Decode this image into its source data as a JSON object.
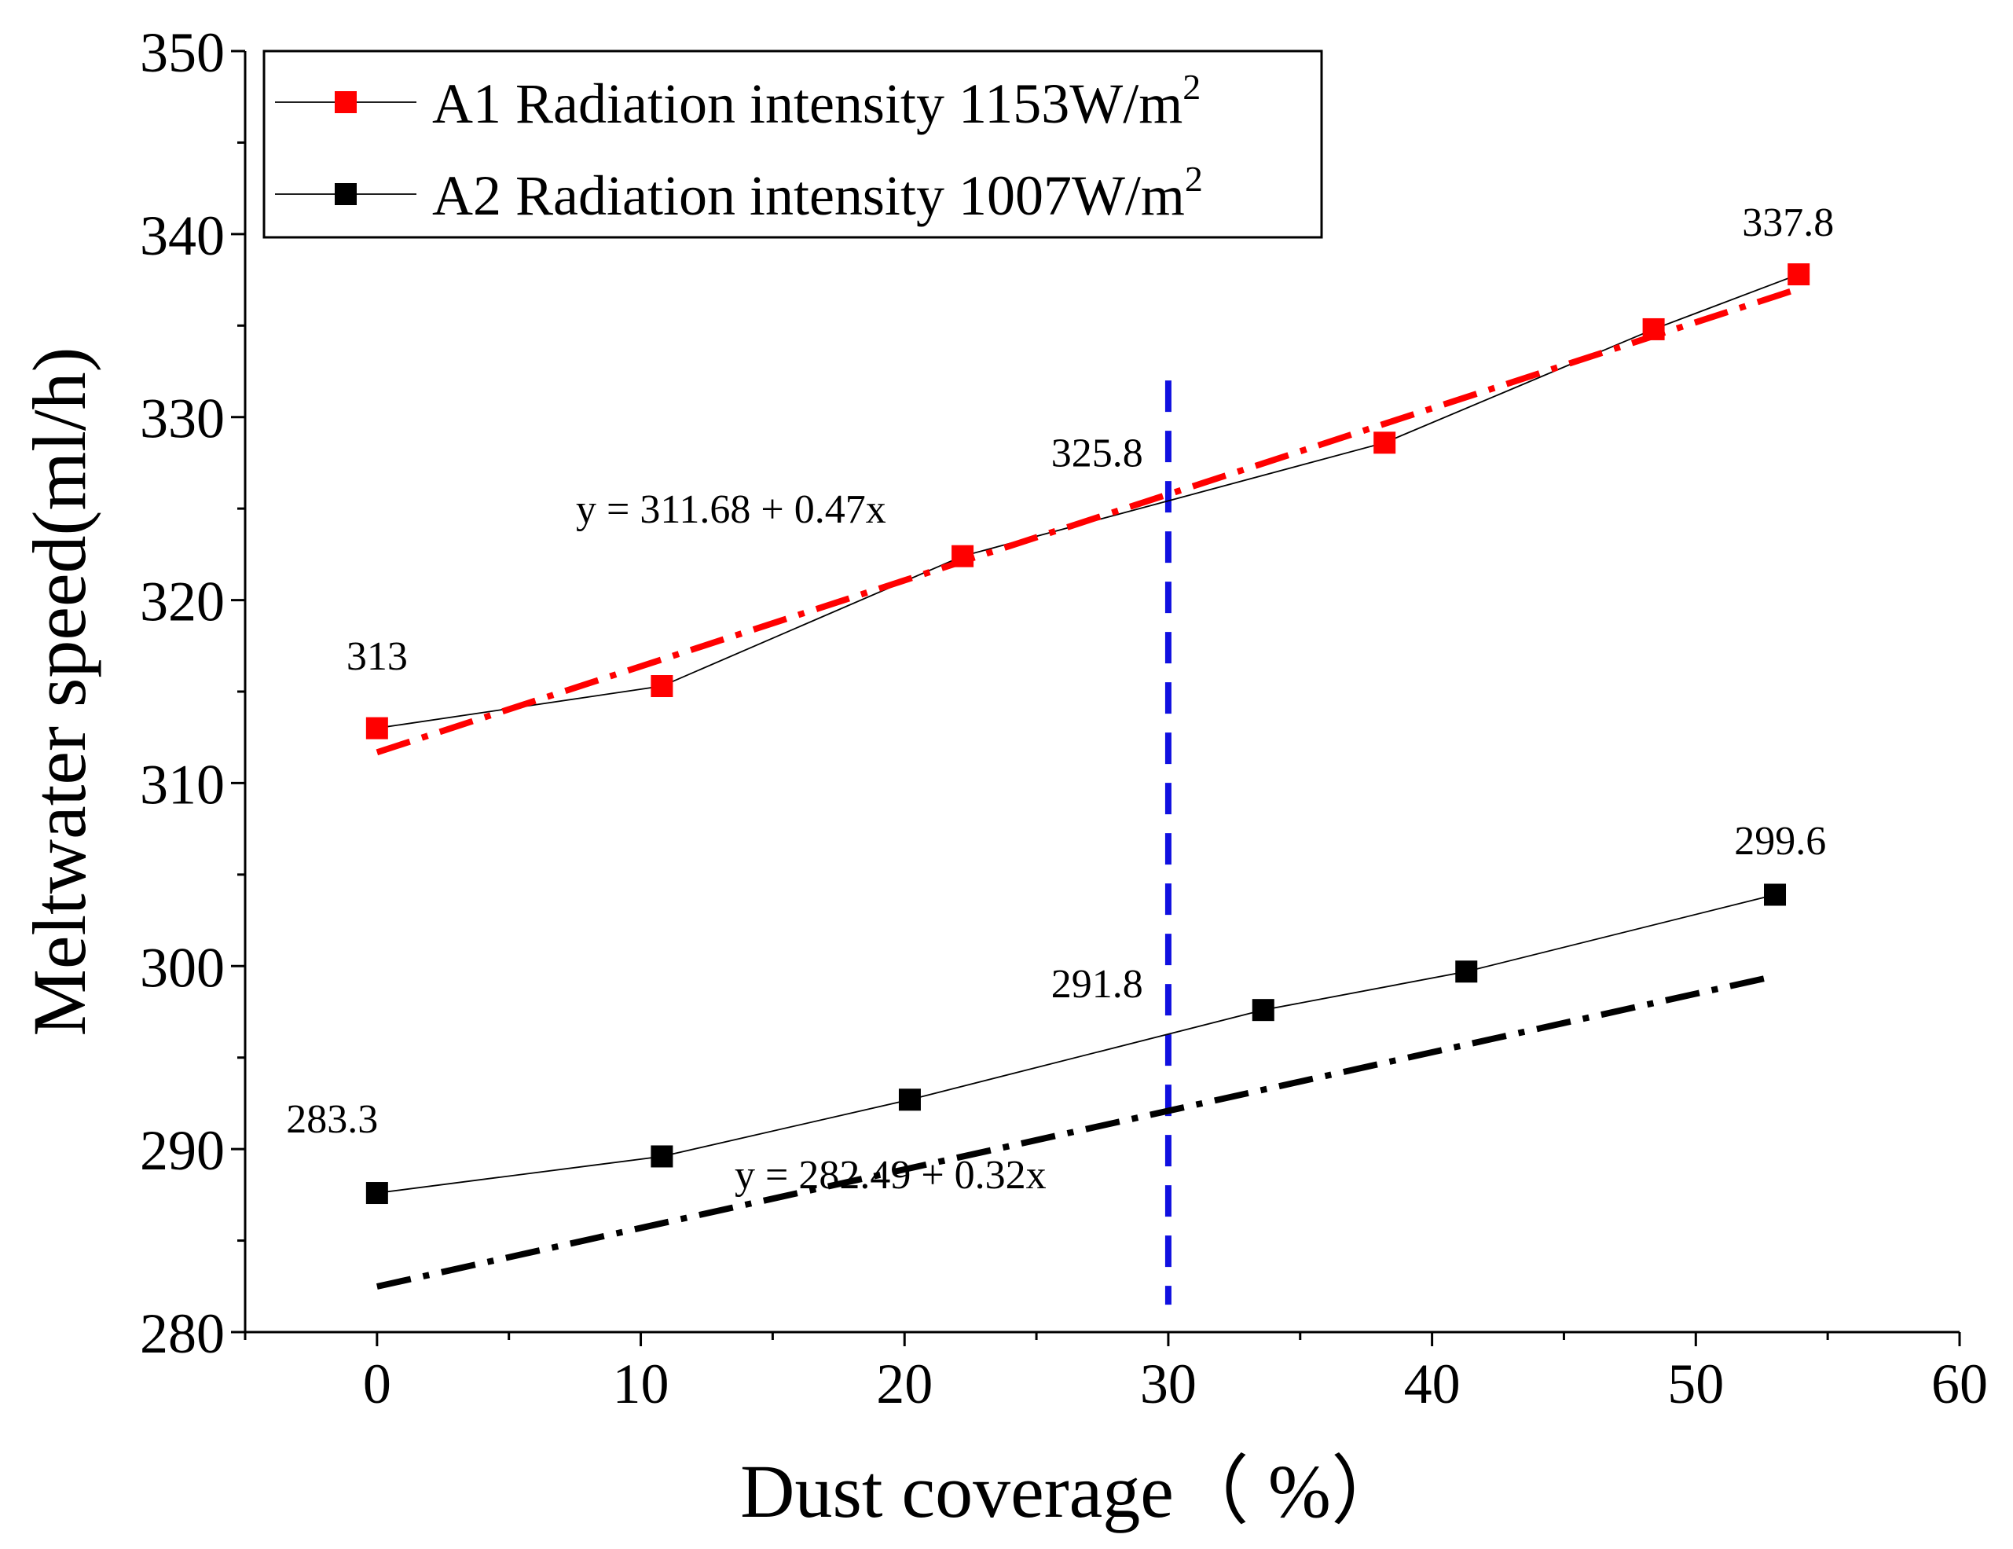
{
  "chart_data": {
    "type": "line",
    "title": "",
    "xlabel": "Dust coverage（ %）",
    "ylabel": "Meltwater speed(ml/h)",
    "xlim": [
      -5,
      60
    ],
    "ylim": [
      280,
      350
    ],
    "x_ticks": [
      0,
      10,
      20,
      30,
      40,
      50,
      60
    ],
    "y_ticks": [
      280,
      290,
      300,
      310,
      320,
      330,
      340,
      350
    ],
    "grid": false,
    "legend_position": "top-left",
    "series": [
      {
        "name": "A1 Radiation intensity 1153W/m",
        "name_superscript": "2",
        "color": "#ff0000",
        "marker": "square",
        "x": [
          0,
          10.8,
          22.2,
          38.2,
          48.4,
          53.9
        ],
        "y": [
          313,
          315.3,
          322.4,
          328.6,
          334.8,
          337.8
        ],
        "fit": {
          "intercept": 311.68,
          "slope": 0.47,
          "x_range": [
            0,
            53.9
          ],
          "label": "y = 311.68 + 0.47x"
        }
      },
      {
        "name": "A2 Radiation intensity 1007W/m",
        "name_superscript": "2",
        "color": "#000000",
        "marker": "square",
        "x": [
          0,
          10.8,
          20.2,
          33.6,
          41.3,
          53
        ],
        "y": [
          287.6,
          289.6,
          292.7,
          297.6,
          299.7,
          303.9
        ],
        "fit": {
          "intercept": 282.49,
          "slope": 0.32,
          "x_range": [
            0,
            53
          ],
          "label": "y = 282.49 + 0.32x"
        }
      }
    ],
    "vertical_line": {
      "x": 30,
      "y_range": [
        281.5,
        332
      ],
      "color": "#1010e0",
      "style": "dashed"
    },
    "annotations": [
      {
        "text": "313",
        "x": 0,
        "y": 316.2
      },
      {
        "text": "337.8",
        "x": 53.5,
        "y": 339.9
      },
      {
        "text": "325.8",
        "x": 27.3,
        "y": 327.3
      },
      {
        "text": "299.6",
        "x": 53.2,
        "y": 306.1
      },
      {
        "text": "291.8",
        "x": 27.3,
        "y": 298.3
      },
      {
        "text": "283.3",
        "x": -1.7,
        "y": 290.9
      }
    ]
  }
}
